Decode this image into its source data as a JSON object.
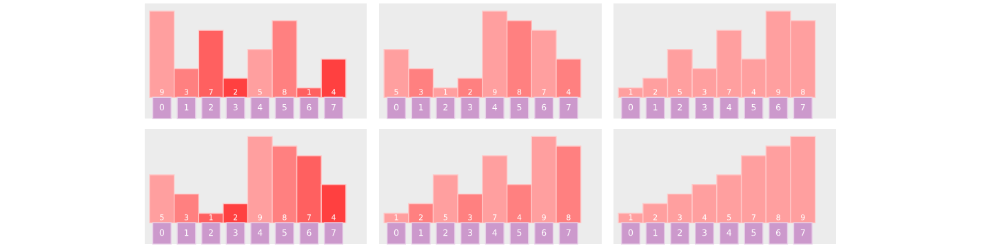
{
  "chart_data": [
    {
      "type": "bar",
      "categories": [
        "0",
        "1",
        "2",
        "3",
        "4",
        "5",
        "6",
        "7"
      ],
      "values": [
        9,
        3,
        7,
        2,
        5,
        8,
        1,
        4
      ],
      "colors": [
        "#ff9f9f",
        "#ff8080",
        "#ff6060",
        "#ff4040",
        "#ff9f9f",
        "#ff8080",
        "#ff6060",
        "#ff4040"
      ],
      "data_labels": true
    },
    {
      "type": "bar",
      "categories": [
        "0",
        "1",
        "2",
        "3",
        "4",
        "5",
        "6",
        "7"
      ],
      "values": [
        5,
        3,
        1,
        2,
        9,
        8,
        7,
        4
      ],
      "colors": [
        "#ff9f9f",
        "#ff8080",
        "#ff9f9f",
        "#ff8080",
        "#ff9f9f",
        "#ff8080",
        "#ff9f9f",
        "#ff8080"
      ],
      "data_labels": true
    },
    {
      "type": "bar",
      "categories": [
        "0",
        "1",
        "2",
        "3",
        "4",
        "5",
        "6",
        "7"
      ],
      "values": [
        1,
        2,
        5,
        3,
        7,
        4,
        9,
        8
      ],
      "colors": [
        "#ff9f9f",
        "#ff9f9f",
        "#ff9f9f",
        "#ff9f9f",
        "#ff9f9f",
        "#ff9f9f",
        "#ff9f9f",
        "#ff9f9f"
      ],
      "data_labels": true
    },
    {
      "type": "bar",
      "categories": [
        "0",
        "1",
        "2",
        "3",
        "4",
        "5",
        "6",
        "7"
      ],
      "values": [
        5,
        3,
        1,
        2,
        9,
        8,
        7,
        4
      ],
      "colors": [
        "#ff9f9f",
        "#ff8080",
        "#ff6060",
        "#ff4040",
        "#ff9f9f",
        "#ff8080",
        "#ff6060",
        "#ff4040"
      ],
      "data_labels": true
    },
    {
      "type": "bar",
      "categories": [
        "0",
        "1",
        "2",
        "3",
        "4",
        "5",
        "6",
        "7"
      ],
      "values": [
        1,
        2,
        5,
        3,
        7,
        4,
        9,
        8
      ],
      "colors": [
        "#ff9f9f",
        "#ff8080",
        "#ff9f9f",
        "#ff8080",
        "#ff9f9f",
        "#ff8080",
        "#ff9f9f",
        "#ff8080"
      ],
      "data_labels": true
    },
    {
      "type": "bar",
      "categories": [
        "0",
        "1",
        "2",
        "3",
        "4",
        "5",
        "6",
        "7"
      ],
      "values": [
        1,
        2,
        3,
        4,
        5,
        7,
        8,
        9
      ],
      "colors": [
        "#ff9f9f",
        "#ff9f9f",
        "#ff9f9f",
        "#ff9f9f",
        "#ff9f9f",
        "#ff9f9f",
        "#ff9f9f",
        "#ff9f9f"
      ],
      "data_labels": true
    }
  ]
}
